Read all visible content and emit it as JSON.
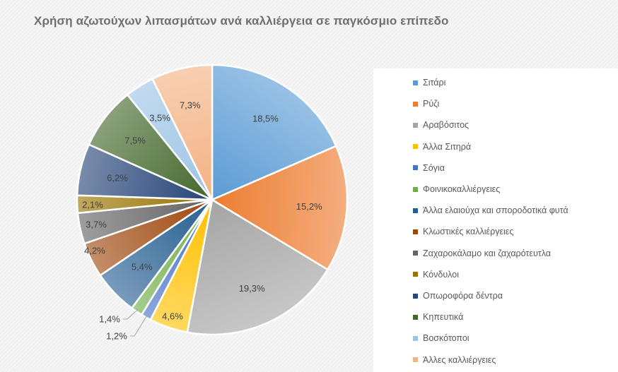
{
  "chart_data": {
    "type": "pie",
    "title": "Χρήση αζωτούχων λιπασμάτων ανά καλλιέργεια σε παγκόσμιο επίπεδο",
    "legend_position": "right",
    "categories": [
      "Σιτάρι",
      "Ρύζι",
      "Αραβόσιτος",
      "Άλλα Σιτηρά",
      "Σόγια",
      "Φοινικοκαλλιέργειες",
      "Άλλα ελαιούχα και σποροδοτικά φυτά",
      "Κλωστικές καλλιέργειες",
      "Ζαχαροκάλαμο και ζαχαρότευτλα",
      "Κόνδυλοι",
      "Οπωροφόρα δέντρα",
      "Κηπευτικά",
      "Βοσκότοποι",
      "Άλλες καλλιέργειες"
    ],
    "values": [
      18.5,
      15.2,
      19.3,
      4.6,
      1.2,
      1.4,
      5.4,
      4.2,
      3.7,
      2.1,
      6.2,
      7.5,
      3.5,
      7.3
    ],
    "labels": [
      "18,5%",
      "15,2%",
      "19,3%",
      "4,6%",
      "1,2%",
      "1,4%",
      "5,4%",
      "4,2%",
      "3,7%",
      "2,1%",
      "6,2%",
      "7,5%",
      "3,5%",
      "7,3%"
    ],
    "colors": [
      "#5b9bd5",
      "#ed7d31",
      "#a5a5a5",
      "#ffc000",
      "#4472c4",
      "#70ad47",
      "#255e91",
      "#9e480e",
      "#636363",
      "#997300",
      "#264478",
      "#43682b",
      "#9dc3e6",
      "#f4b183"
    ]
  }
}
